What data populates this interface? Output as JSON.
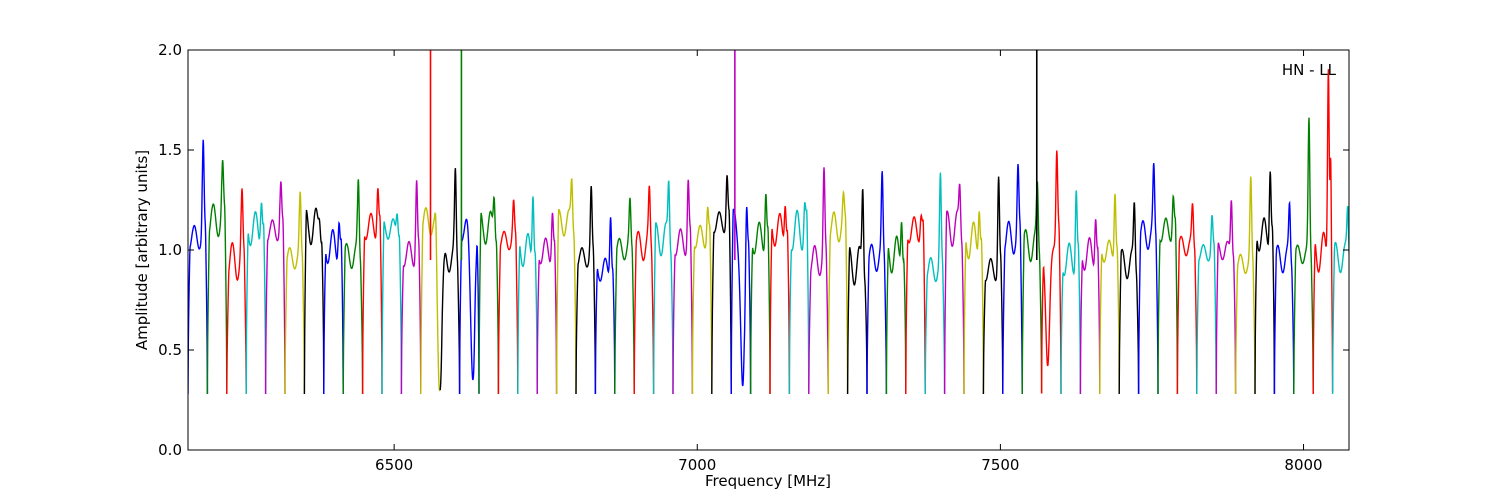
{
  "chart_data": {
    "type": "line",
    "xlabel": "Frequency [MHz]",
    "ylabel": "Amplitude [arbitrary units]",
    "xlim": [
      6160,
      8075
    ],
    "ylim": [
      0,
      2.0
    ],
    "x_ticks": [
      6500,
      7000,
      7500,
      8000
    ],
    "x_tick_labels": [
      "6500",
      "7000",
      "7500",
      "8000"
    ],
    "y_ticks": [
      0.0,
      0.5,
      1.0,
      1.5,
      2.0
    ],
    "y_tick_labels": [
      "0.0",
      "0.5",
      "1.0",
      "1.5",
      "2.0"
    ],
    "grid": false,
    "annotation": "HN - LL",
    "annotation_position": "top-right",
    "series_colors": [
      "#0000ff",
      "#008000",
      "#ff0000",
      "#00bfbf",
      "#bf00bf",
      "#bfbf00",
      "#000000"
    ],
    "channel_width_mhz": 32,
    "channel_start_mhz": 6160,
    "channel_count": 60,
    "channel_peaks": [
      1.51,
      1.38,
      1.22,
      1.31,
      1.32,
      1.24,
      1.2,
      1.2,
      1.32,
      1.34,
      1.22,
      1.35,
      1.3,
      1.36,
      1.33,
      1.31,
      1.21,
      1.35,
      1.22,
      1.36,
      1.28,
      1.22,
      1.21,
      1.26,
      1.35,
      1.35,
      1.22,
      1.37,
      1.46,
      1.33,
      1.3,
      1.24,
      1.35,
      1.22,
      1.35,
      1.33,
      1.23,
      1.2,
      1.33,
      1.32,
      1.28,
      1.36,
      1.36,
      1.3,
      1.48,
      1.33,
      1.22,
      1.33,
      1.22,
      1.37,
      1.28,
      1.2,
      1.15,
      1.28,
      1.32,
      1.46,
      1.2,
      1.63,
      2.0,
      1.2
    ],
    "spikes": [
      {
        "x": 6560,
        "y": 2.0,
        "color": "#ff0000"
      },
      {
        "x": 6611,
        "y": 2.0,
        "color": "#008000"
      },
      {
        "x": 7062,
        "y": 2.0,
        "color": "#bf00bf"
      },
      {
        "x": 7560,
        "y": 2.0,
        "color": "#000000"
      }
    ],
    "dips": [
      {
        "x": 6575,
        "y": 0.3
      },
      {
        "x": 6630,
        "y": 0.35
      },
      {
        "x": 7075,
        "y": 0.32
      },
      {
        "x": 7578,
        "y": 0.42
      }
    ]
  }
}
